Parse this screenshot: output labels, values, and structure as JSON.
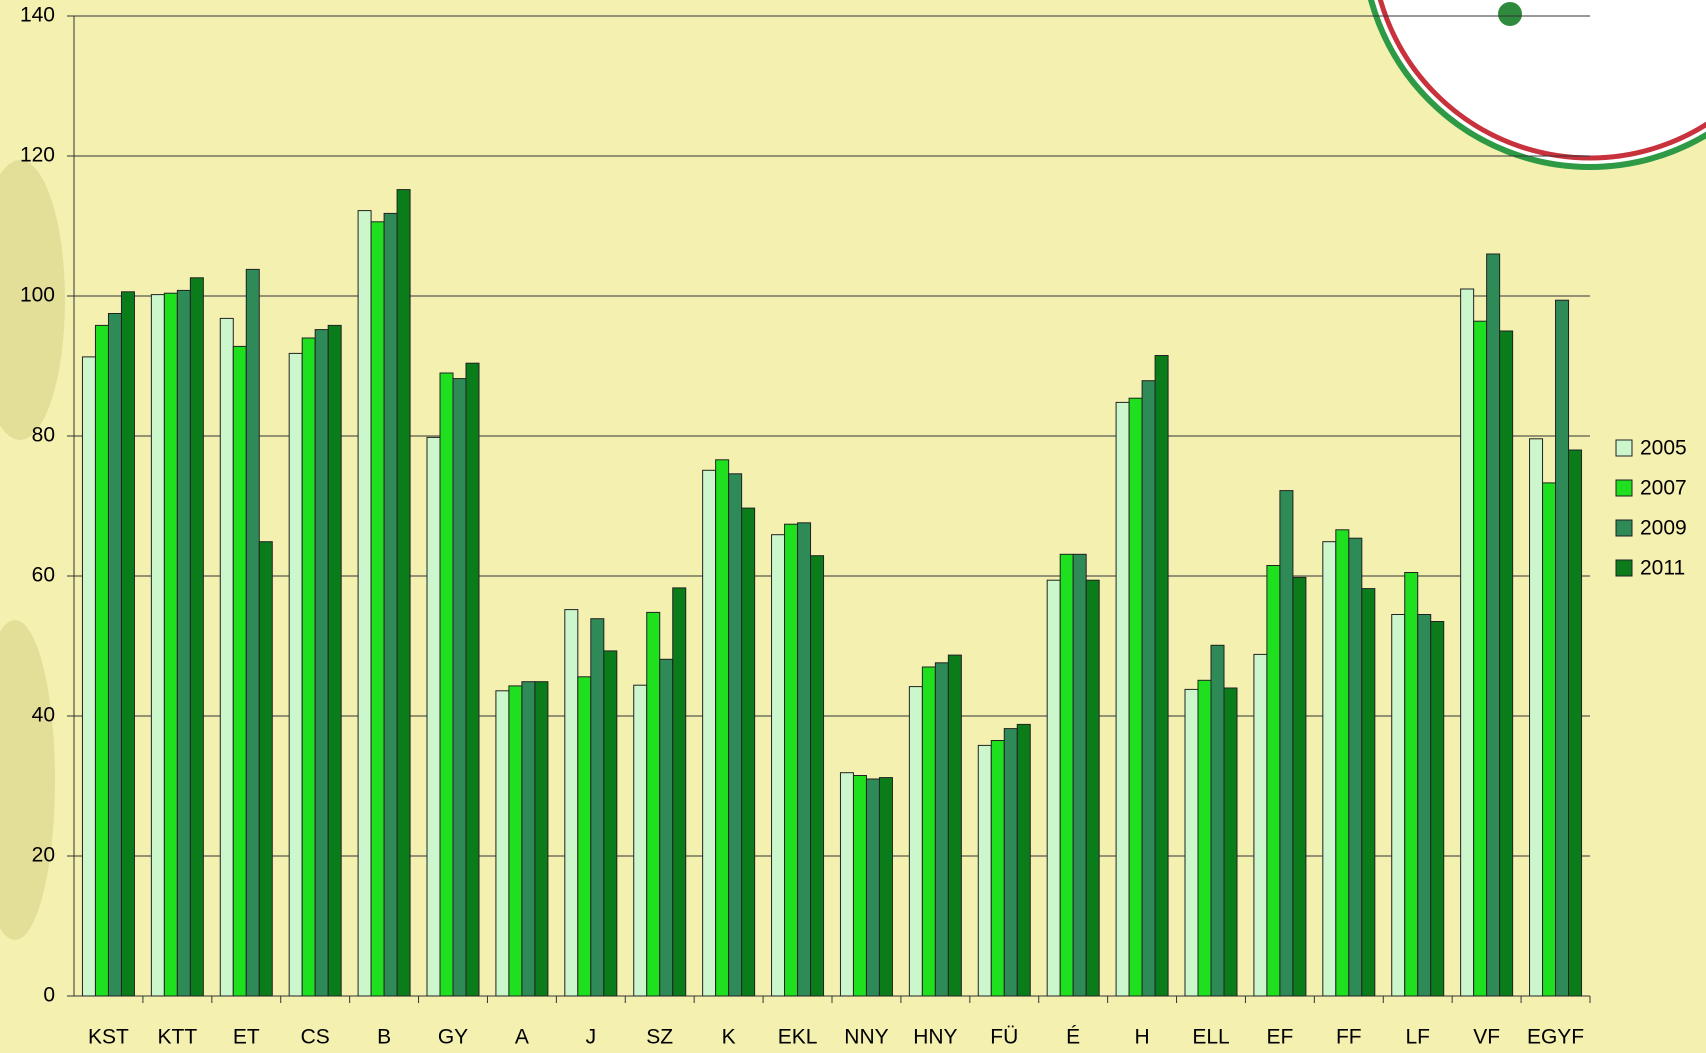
{
  "chart_data": {
    "type": "bar",
    "categories": [
      "KST",
      "KTT",
      "ET",
      "CS",
      "B",
      "GY",
      "A",
      "J",
      "SZ",
      "K",
      "EKL",
      "NNY",
      "HNY",
      "FÜ",
      "É",
      "H",
      "ELL",
      "EF",
      "FF",
      "LF",
      "VF",
      "EGYF"
    ],
    "series": [
      {
        "name": "2005",
        "color": "#ccf7cc",
        "values": [
          91.3,
          100.2,
          96.8,
          91.8,
          112.2,
          79.8,
          43.6,
          55.2,
          44.4,
          75.1,
          65.9,
          31.9,
          44.2,
          35.8,
          59.4,
          84.8,
          43.8,
          48.8,
          64.9,
          54.5,
          101.0,
          79.6
        ]
      },
      {
        "name": "2007",
        "color": "#1fe01f",
        "values": [
          95.8,
          100.4,
          92.8,
          94.0,
          110.6,
          89.0,
          44.3,
          45.6,
          54.8,
          76.6,
          67.4,
          31.5,
          47.0,
          36.5,
          63.1,
          85.4,
          45.1,
          61.5,
          66.6,
          60.5,
          96.4,
          73.3
        ]
      },
      {
        "name": "2009",
        "color": "#2e8b57",
        "values": [
          97.5,
          100.8,
          103.8,
          95.2,
          111.8,
          88.2,
          44.9,
          53.9,
          48.1,
          74.6,
          67.6,
          31.0,
          47.6,
          38.2,
          63.1,
          87.9,
          50.1,
          72.2,
          65.4,
          54.5,
          106.0,
          99.4
        ]
      },
      {
        "name": "2011",
        "color": "#0a7d1a",
        "values": [
          100.6,
          102.6,
          64.9,
          95.8,
          115.2,
          90.4,
          44.9,
          49.3,
          58.3,
          69.7,
          62.9,
          31.2,
          48.7,
          38.8,
          59.4,
          91.5,
          44.0,
          59.8,
          58.2,
          53.5,
          95.0,
          78.0
        ]
      }
    ],
    "ylim": [
      0,
      140
    ],
    "yticks": [
      0,
      20,
      40,
      60,
      80,
      100,
      120,
      140
    ],
    "grid": true,
    "legend": "right"
  }
}
